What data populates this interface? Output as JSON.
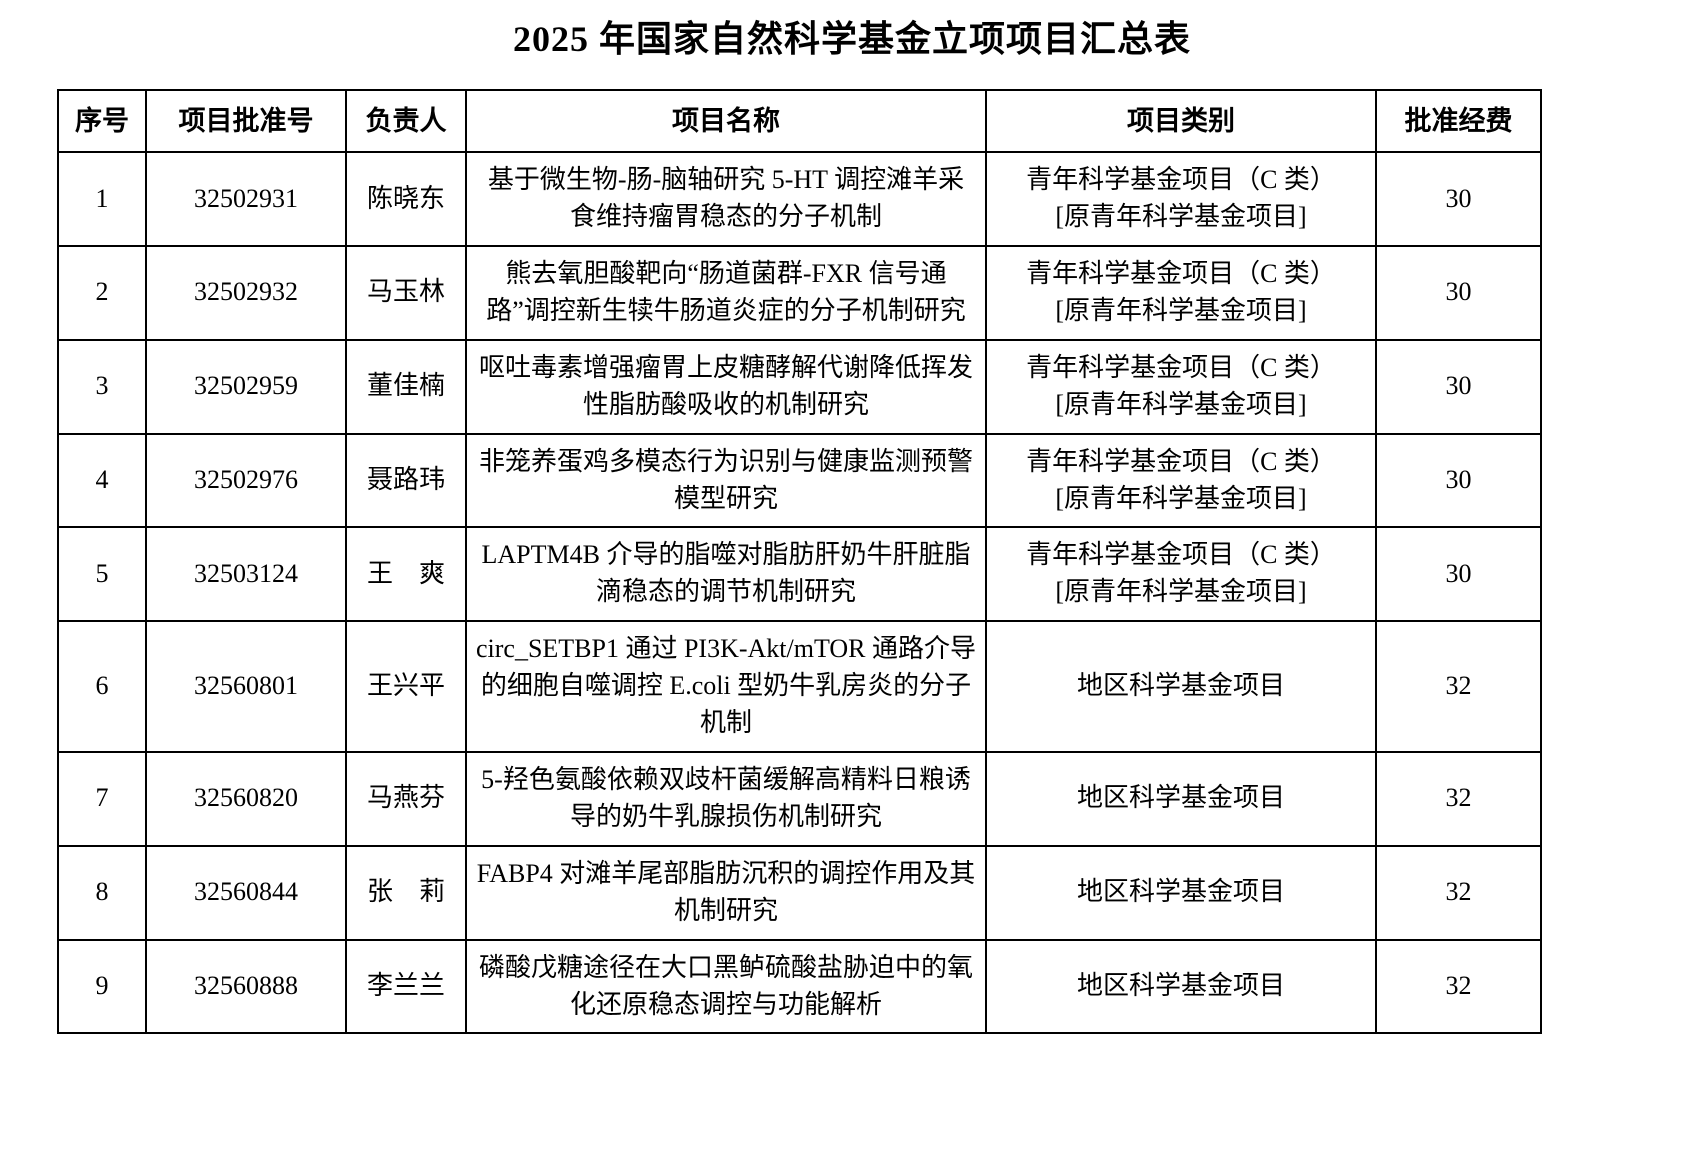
{
  "page": {
    "title": "2025 年国家自然科学基金立项项目汇总表"
  },
  "table": {
    "headers": {
      "no": "序号",
      "grant_number": "项目批准号",
      "pi": "负责人",
      "project_name": "项目名称",
      "category": "项目类别",
      "funding": "批准经费"
    },
    "rows": [
      {
        "no": "1",
        "grant_number": "32502931",
        "pi": "陈晓东",
        "project_name": "基于微生物-肠-脑轴研究 5-HT 调控滩羊采食维持瘤胃稳态的分子机制",
        "category": "青年科学基金项目（C 类）\n[原青年科学基金项目]",
        "funding": "30"
      },
      {
        "no": "2",
        "grant_number": "32502932",
        "pi": "马玉林",
        "project_name": "熊去氧胆酸靶向“肠道菌群-FXR 信号通路”调控新生犊牛肠道炎症的分子机制研究",
        "category": "青年科学基金项目（C 类）\n[原青年科学基金项目]",
        "funding": "30"
      },
      {
        "no": "3",
        "grant_number": "32502959",
        "pi": "董佳楠",
        "project_name": "呕吐毒素增强瘤胃上皮糖酵解代谢降低挥发性脂肪酸吸收的机制研究",
        "category": "青年科学基金项目（C 类）\n[原青年科学基金项目]",
        "funding": "30"
      },
      {
        "no": "4",
        "grant_number": "32502976",
        "pi": "聂路玮",
        "project_name": "非笼养蛋鸡多模态行为识别与健康监测预警模型研究",
        "category": "青年科学基金项目（C 类）\n[原青年科学基金项目]",
        "funding": "30"
      },
      {
        "no": "5",
        "grant_number": "32503124",
        "pi": "王　爽",
        "project_name": "LAPTM4B 介导的脂噬对脂肪肝奶牛肝脏脂滴稳态的调节机制研究",
        "category": "青年科学基金项目（C 类）\n[原青年科学基金项目]",
        "funding": "30"
      },
      {
        "no": "6",
        "grant_number": "32560801",
        "pi": "王兴平",
        "project_name": "circ_SETBP1 通过 PI3K-Akt/mTOR 通路介导的细胞自噬调控 E.coli 型奶牛乳房炎的分子机制",
        "category": "地区科学基金项目",
        "funding": "32"
      },
      {
        "no": "7",
        "grant_number": "32560820",
        "pi": "马燕芬",
        "project_name": "5-羟色氨酸依赖双歧杆菌缓解高精料日粮诱导的奶牛乳腺损伤机制研究",
        "category": "地区科学基金项目",
        "funding": "32"
      },
      {
        "no": "8",
        "grant_number": "32560844",
        "pi": "张　莉",
        "project_name": "FABP4 对滩羊尾部脂肪沉积的调控作用及其机制研究",
        "category": "地区科学基金项目",
        "funding": "32"
      },
      {
        "no": "9",
        "grant_number": "32560888",
        "pi": "李兰兰",
        "project_name": "磷酸戊糖途径在大口黑鲈硫酸盐胁迫中的氧化还原稳态调控与功能解析",
        "category": "地区科学基金项目",
        "funding": "32"
      }
    ]
  }
}
